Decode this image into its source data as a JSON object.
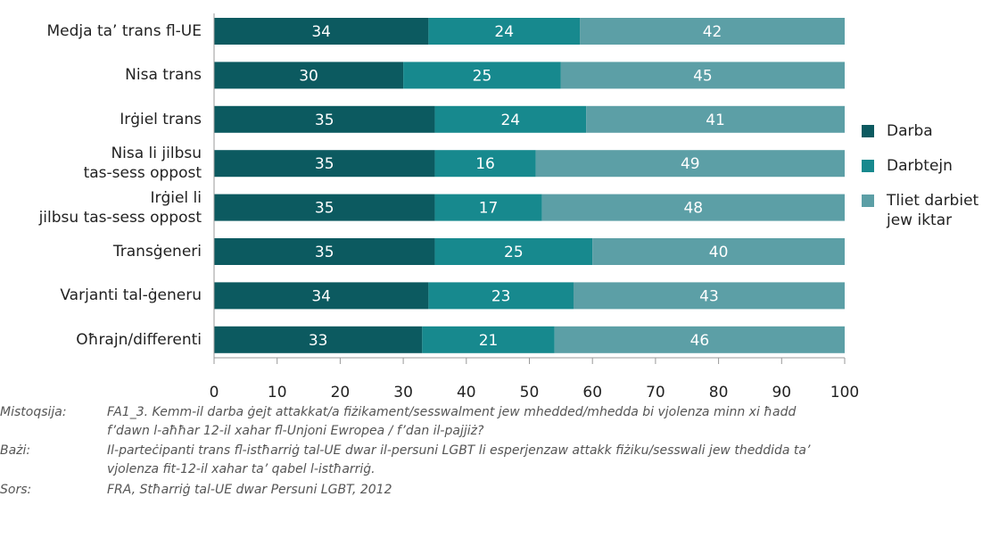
{
  "chart_data": {
    "type": "stacked-bar-horizontal",
    "categories": [
      "Medja ta’ trans fl-UE",
      "Nisa trans",
      "Irġiel trans",
      "Nisa li jilbsu\ntas-sess oppost",
      "Irġiel li\njilbsu tas-sess oppost",
      "Transġeneri",
      "Varjanti tal-ġeneru",
      "Oħrajn/differenti"
    ],
    "series": [
      {
        "name": "Darba",
        "color": "#0c5a60",
        "values": [
          34,
          30,
          35,
          35,
          35,
          35,
          34,
          33
        ]
      },
      {
        "name": "Darbtejn",
        "color": "#17898e",
        "values": [
          24,
          25,
          24,
          16,
          17,
          25,
          23,
          21
        ]
      },
      {
        "name": "Tliet darbiet\njew iktar",
        "color": "#5c9fa6",
        "values": [
          42,
          45,
          41,
          49,
          48,
          40,
          43,
          46
        ]
      }
    ],
    "xlim": [
      0,
      100
    ],
    "xticks": [
      0,
      10,
      20,
      30,
      40,
      50,
      60,
      70,
      80,
      90,
      100
    ],
    "legend": "right",
    "notes": [
      {
        "label": "Mistoqsija:",
        "text": "FA1_3. Kemm-il darba ġejt attakkat/a fiżikament/sesswalment jew mhedded/mhedda bi vjolenza minn xi ħadd\nf’dawn l-aħħar 12-il xahar fl-Unjoni Ewropea / f’dan il-pajjiż?"
      },
      {
        "label": "Bażi:",
        "text": "Il-parteċipanti trans fl-istħarriġ tal-UE dwar il-persuni LGBT li esperjenzaw attakk fiżiku/sesswali jew theddida ta’\nvjolenza fit-12-il xahar ta’ qabel l-istħarriġ."
      },
      {
        "label": "Sors:",
        "text": "FRA, Stħarriġ tal-UE dwar Persuni LGBT, 2012"
      }
    ]
  }
}
